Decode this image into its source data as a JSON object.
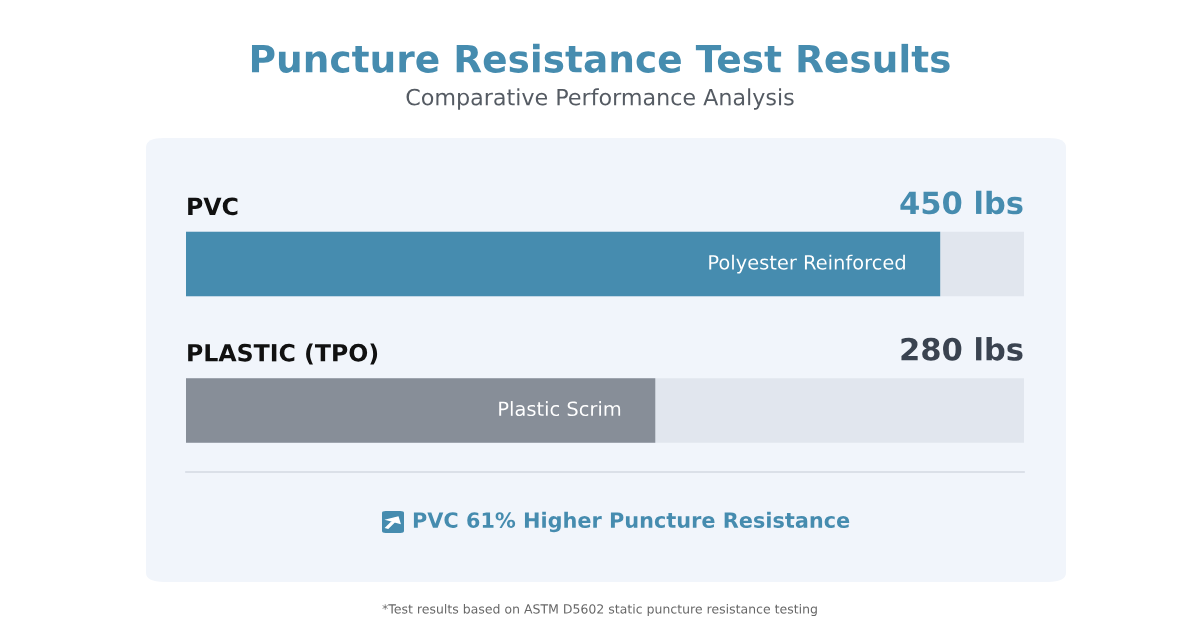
{
  "chart_data": {
    "type": "bar",
    "orientation": "horizontal",
    "title": "Puncture Resistance Test Results",
    "subtitle": "Comparative Performance Analysis",
    "categories": [
      "PVC",
      "PLASTIC (TPO)"
    ],
    "values": [
      450,
      280
    ],
    "colors": [
      "#468caf",
      "#878e98"
    ],
    "value_labels": [
      "450 lbs",
      "280 lbs"
    ],
    "xlim": [
      0,
      500
    ],
    "annotations": [
      "Polyester Reinforced",
      "Plastic Scrim",
      "PVC 61% Higher Puncture Resistance",
      "*Test results based on ASTM D5602 static puncture resistance testing"
    ]
  }
}
